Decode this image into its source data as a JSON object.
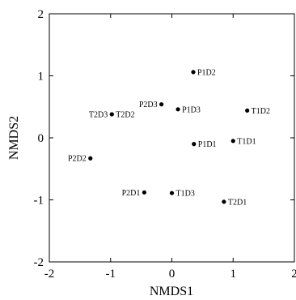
{
  "chart_data": {
    "type": "scatter",
    "xlabel": "NMDS1",
    "ylabel": "NMDS2",
    "xlim": [
      -2,
      2
    ],
    "ylim": [
      -2,
      2
    ],
    "xticks": [
      -2,
      -1,
      0,
      1,
      2
    ],
    "yticks": [
      -2,
      -1,
      0,
      1,
      2
    ],
    "grid": false,
    "points": [
      {
        "label": "P1D2",
        "x": 0.35,
        "y": 1.06
      },
      {
        "label": "P2D3",
        "x": -0.17,
        "y": 0.54
      },
      {
        "label": "P1D3",
        "x": 0.1,
        "y": 0.46
      },
      {
        "label": "T1D2",
        "x": 1.23,
        "y": 0.44
      },
      {
        "label": "T2D3",
        "x": -0.98,
        "y": 0.38
      },
      {
        "label": "T2D2",
        "x": -0.98,
        "y": 0.38
      },
      {
        "label": "P1D1",
        "x": 0.36,
        "y": -0.1
      },
      {
        "label": "T1D1",
        "x": 1.0,
        "y": -0.05
      },
      {
        "label": "P2D2",
        "x": -1.33,
        "y": -0.33
      },
      {
        "label": "P2D1",
        "x": -0.45,
        "y": -0.88
      },
      {
        "label": "T1D3",
        "x": 0.0,
        "y": -0.89
      },
      {
        "label": "T2D1",
        "x": 0.85,
        "y": -1.03
      }
    ]
  }
}
